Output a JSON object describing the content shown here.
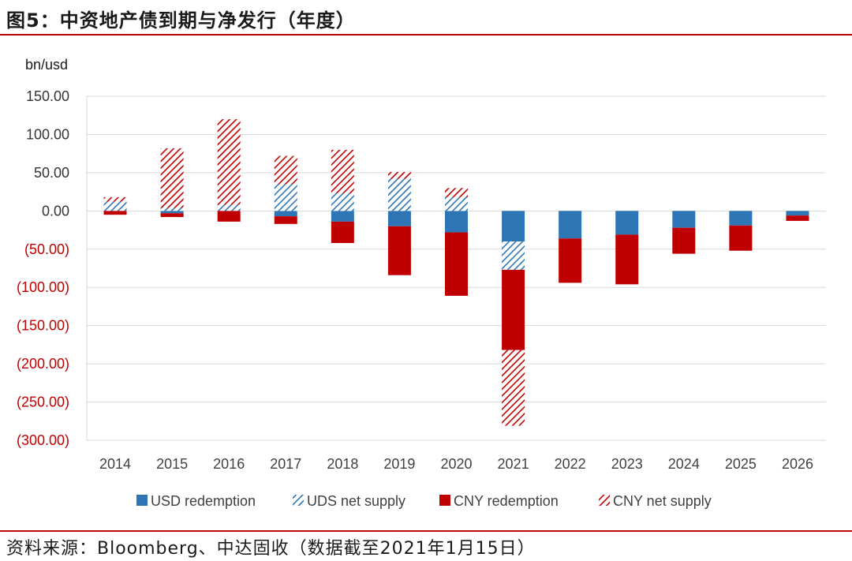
{
  "title": "图5：中资地产债到期与净发行（年度）",
  "source": "资料来源：Bloomberg、中达固收（数据截至2021年1月15日）",
  "chart_data": {
    "type": "bar",
    "stacked": true,
    "unit_label": "bn/usd",
    "categories": [
      "2014",
      "2015",
      "2016",
      "2017",
      "2018",
      "2019",
      "2020",
      "2021",
      "2022",
      "2023",
      "2024",
      "2025",
      "2026"
    ],
    "ylim": [
      -300,
      150
    ],
    "ytick_step": 50,
    "ytick_labels": [
      "150.00",
      "100.00",
      "50.00",
      "0.00",
      "(50.00)",
      "(100.00)",
      "(150.00)",
      "(200.00)",
      "(250.00)",
      "(300.00)"
    ],
    "negative_label_color": "#c00000",
    "positive_label_color": "#333333",
    "grid": true,
    "legend_position": "bottom",
    "series": [
      {
        "name": "USD redemption",
        "pattern": "solid",
        "color": "#2e75b6",
        "values": [
          0,
          -3,
          0,
          -7,
          -14,
          -20,
          -28,
          -40,
          -36,
          -31,
          -22,
          -19,
          -6
        ]
      },
      {
        "name": "UDS net supply",
        "pattern": "hatch",
        "color": "#2e75b6",
        "values": [
          12,
          4,
          8,
          35,
          23,
          42,
          18,
          -37,
          0,
          0,
          0,
          0,
          0
        ]
      },
      {
        "name": "CNY redemption",
        "pattern": "solid",
        "color": "#c00000",
        "values": [
          -5,
          -5,
          -14,
          -10,
          -28,
          -64,
          -83,
          -105,
          -58,
          -65,
          -34,
          -33,
          -7
        ]
      },
      {
        "name": "CNY net supply",
        "pattern": "hatch",
        "color": "#c00000",
        "values": [
          6,
          78,
          112,
          37,
          57,
          9,
          12,
          -99,
          0,
          0,
          0,
          0,
          0
        ]
      }
    ]
  }
}
